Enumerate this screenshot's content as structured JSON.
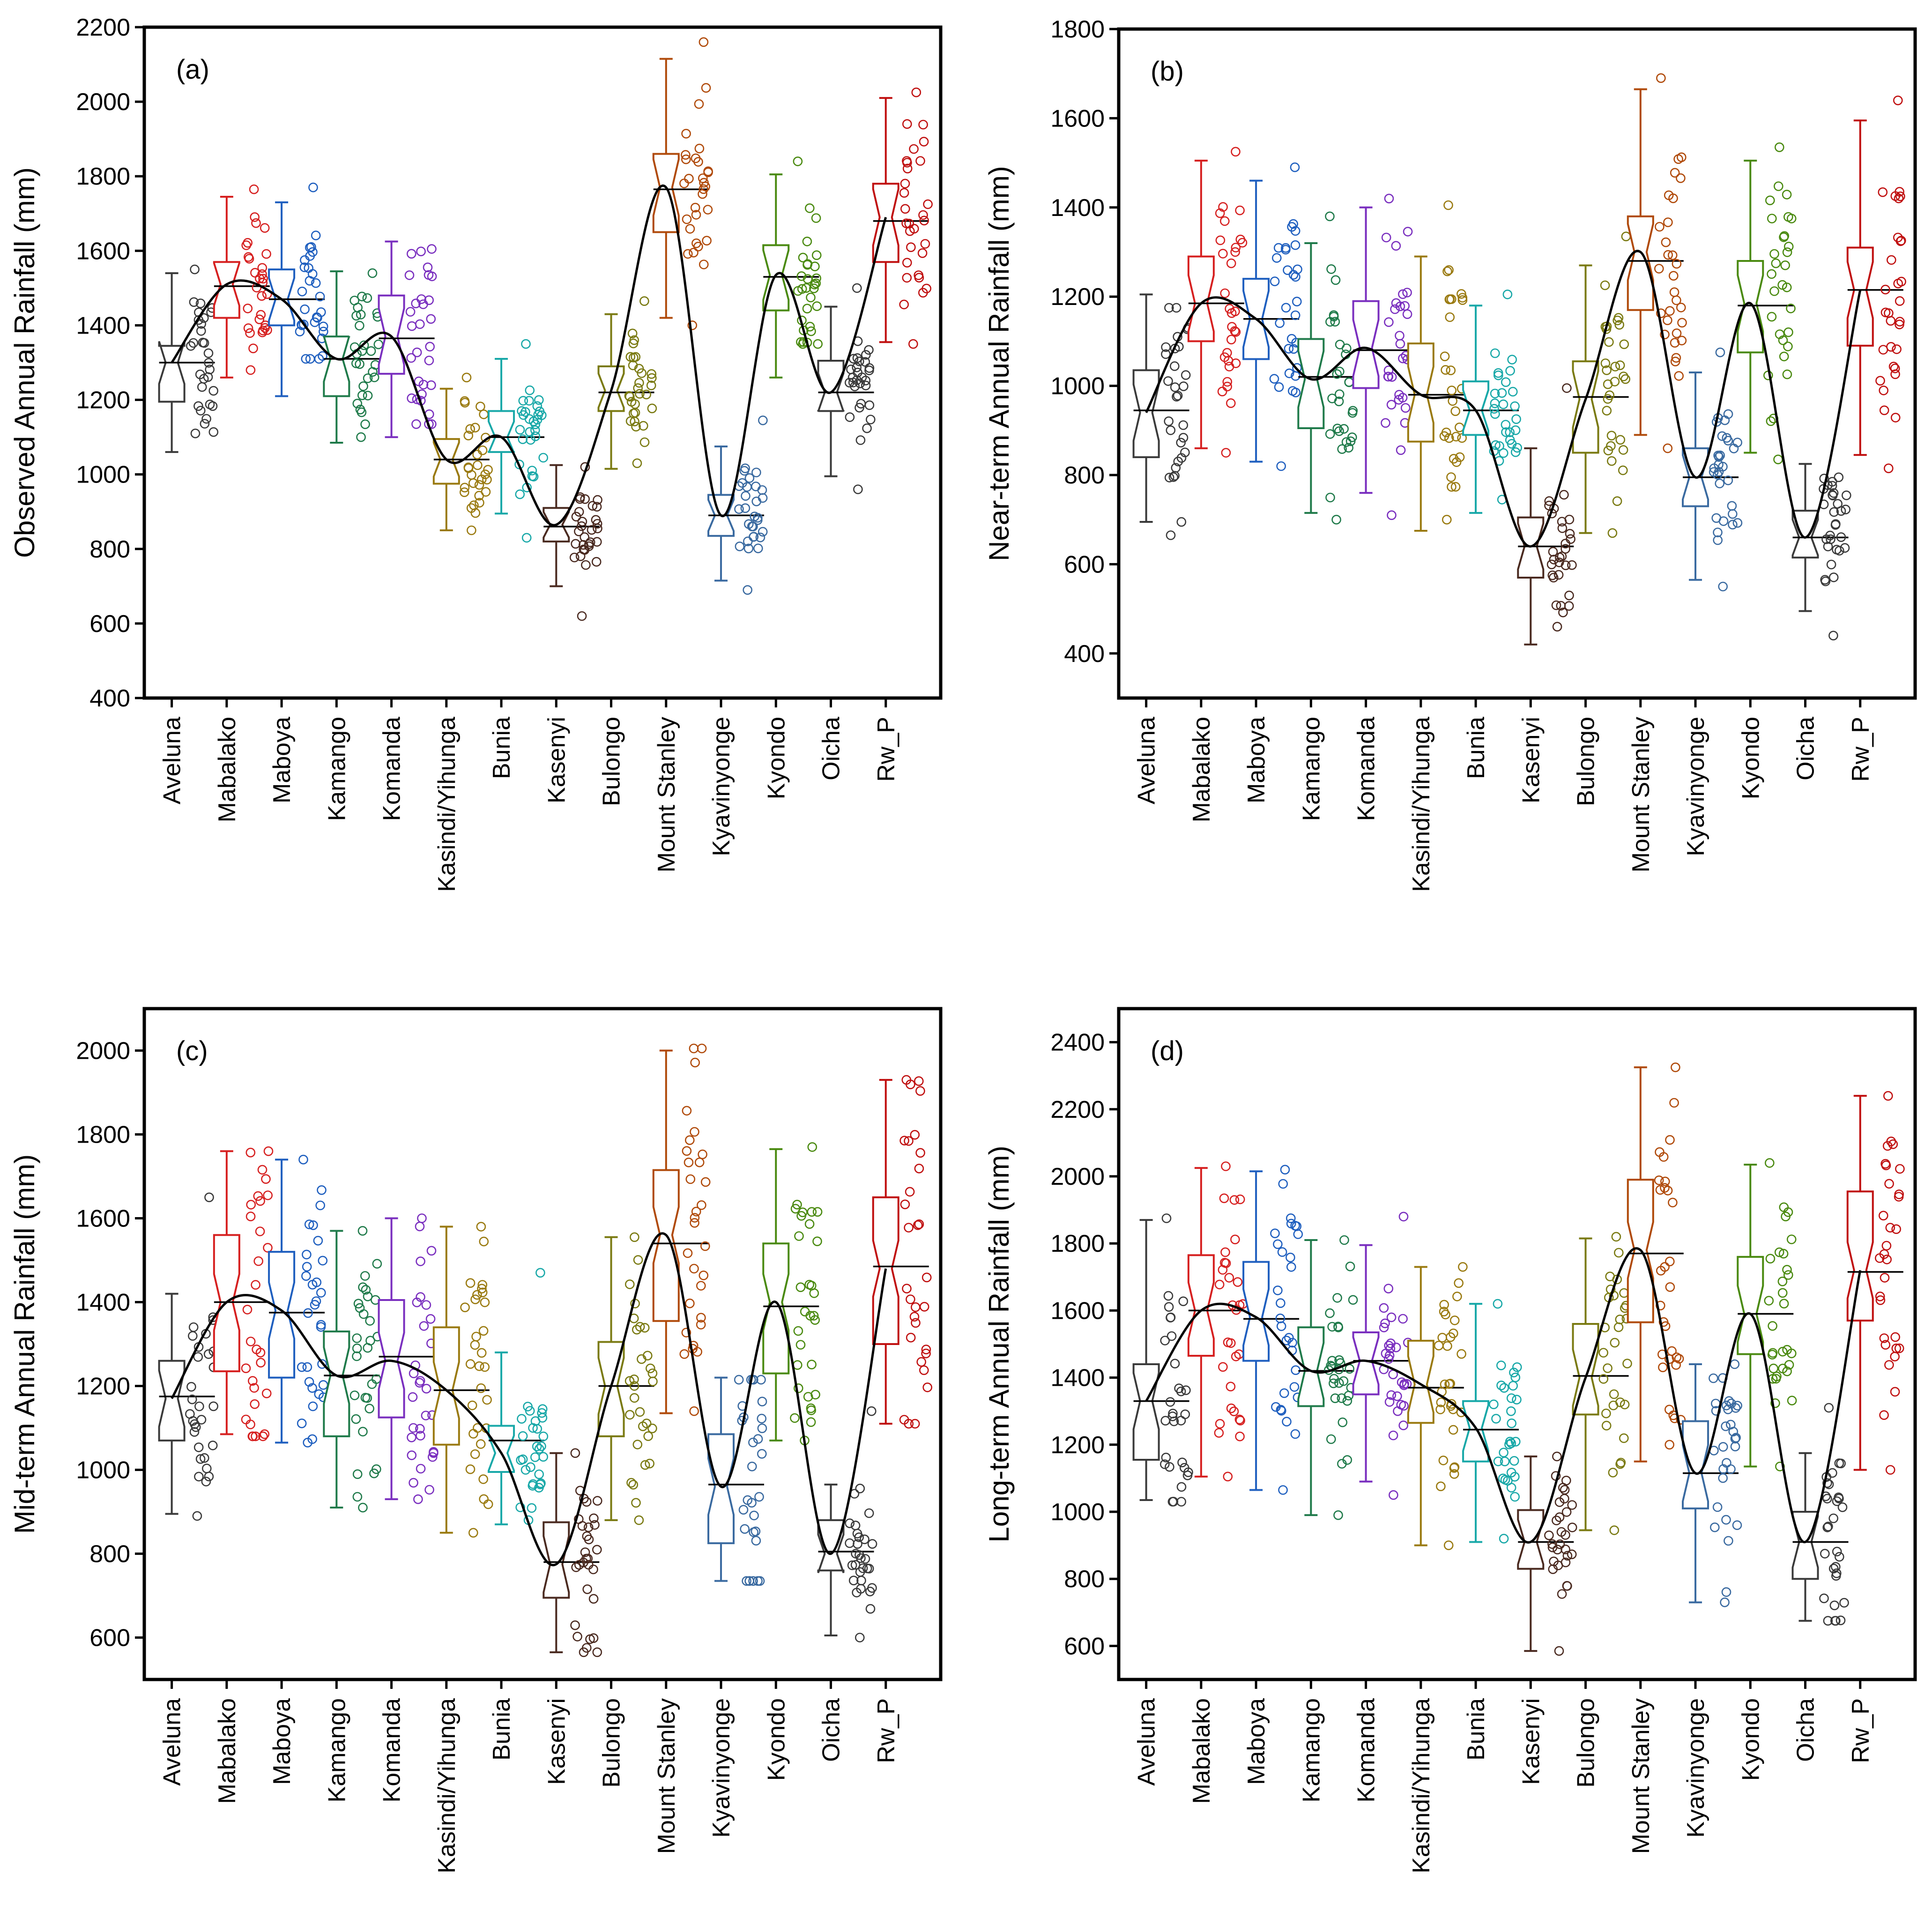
{
  "figure": {
    "categories": [
      "Aveluna",
      "Mabalako",
      "Maboya",
      "Kamango",
      "Komanda",
      "Kasindi/Yihunga",
      "Bunia",
      "Kasenyi",
      "Bulongo",
      "Mount Stanley",
      "Kyavinyonge",
      "Kyondo",
      "Oicha",
      "Rw_P"
    ],
    "colors": [
      "#3a3a3a",
      "#d62020",
      "#1f5fbf",
      "#1f7a4a",
      "#7a2fbf",
      "#9a7a10",
      "#18a8a8",
      "#4a2a20",
      "#7a7a12",
      "#b04a0a",
      "#3a6aa0",
      "#4a8a10",
      "#3a3a3a",
      "#c01010"
    ]
  },
  "chart_data": [
    {
      "type": "box",
      "panel": "(a)",
      "ylabel": "Observed Annual Rainfall (mm)",
      "ylim": [
        400,
        2200
      ],
      "yticks": [
        400,
        600,
        800,
        1000,
        1200,
        1400,
        1600,
        1800,
        2000,
        2200
      ],
      "tick_labels": [
        "400",
        "600",
        "800",
        "1000",
        "1200",
        "1400",
        "1600",
        "1800",
        "2000",
        "2200"
      ],
      "cat_labels": [
        "Aveluna",
        "Mabalako",
        "Maboya",
        "Kamango",
        "Komanda",
        "Kasindi/Yihunga",
        "Bunia",
        "Kasenyi",
        "Bulongo",
        "Mount Stanley",
        "Kyavinyonge",
        "Kyondo",
        "Oicha",
        "Rw_P"
      ],
      "series": [
        {
          "name": "Aveluna",
          "min": 1060,
          "q1": 1195,
          "median": 1300,
          "q3": 1345,
          "max": 1540,
          "mean": 1300,
          "pmin": 1110,
          "pmax": 1550
        },
        {
          "name": "Mabalako",
          "min": 1260,
          "q1": 1420,
          "median": 1510,
          "q3": 1570,
          "max": 1745,
          "mean": 1505,
          "pmin": 1280,
          "pmax": 1765
        },
        {
          "name": "Maboya",
          "min": 1210,
          "q1": 1400,
          "median": 1470,
          "q3": 1550,
          "max": 1730,
          "mean": 1470,
          "pmin": 1310,
          "pmax": 1770
        },
        {
          "name": "Kamango",
          "min": 1085,
          "q1": 1210,
          "median": 1310,
          "q3": 1370,
          "max": 1545,
          "mean": 1310,
          "pmin": 1100,
          "pmax": 1540
        },
        {
          "name": "Komanda",
          "min": 1100,
          "q1": 1270,
          "median": 1370,
          "q3": 1480,
          "max": 1625,
          "mean": 1365,
          "pmin": 1135,
          "pmax": 1605
        },
        {
          "name": "Kasindi/Yihunga",
          "min": 850,
          "q1": 975,
          "median": 1040,
          "q3": 1095,
          "max": 1230,
          "mean": 1040,
          "pmin": 850,
          "pmax": 1260
        },
        {
          "name": "Bunia",
          "min": 895,
          "q1": 1060,
          "median": 1100,
          "q3": 1170,
          "max": 1310,
          "mean": 1100,
          "pmin": 830,
          "pmax": 1350
        },
        {
          "name": "Kasenyi",
          "min": 700,
          "q1": 820,
          "median": 865,
          "q3": 910,
          "max": 1025,
          "mean": 860,
          "pmin": 620,
          "pmax": 1020
        },
        {
          "name": "Bulongo",
          "min": 1015,
          "q1": 1170,
          "median": 1225,
          "q3": 1290,
          "max": 1430,
          "mean": 1220,
          "pmin": 1030,
          "pmax": 1465
        },
        {
          "name": "Mount Stanley",
          "min": 1420,
          "q1": 1650,
          "median": 1770,
          "q3": 1860,
          "max": 2115,
          "mean": 1765,
          "pmin": 1400,
          "pmax": 2160
        },
        {
          "name": "Kyavinyonge",
          "min": 715,
          "q1": 835,
          "median": 890,
          "q3": 945,
          "max": 1075,
          "mean": 890,
          "pmin": 690,
          "pmax": 1145
        },
        {
          "name": "Kyondo",
          "min": 1260,
          "q1": 1440,
          "median": 1535,
          "q3": 1615,
          "max": 1805,
          "mean": 1530,
          "pmin": 1350,
          "pmax": 1840
        },
        {
          "name": "Oicha",
          "min": 995,
          "q1": 1170,
          "median": 1220,
          "q3": 1305,
          "max": 1450,
          "mean": 1220,
          "pmin": 960,
          "pmax": 1500
        },
        {
          "name": "Rw_P",
          "min": 1355,
          "q1": 1570,
          "median": 1690,
          "q3": 1780,
          "max": 2010,
          "mean": 1680,
          "pmin": 1350,
          "pmax": 2025
        }
      ]
    },
    {
      "type": "box",
      "panel": "(b)",
      "ylabel": "Near-term Annual Rainfall (mm)",
      "ylim": [
        300,
        1800
      ],
      "yticks": [
        400,
        600,
        800,
        1000,
        1200,
        1400,
        1600,
        1800
      ],
      "tick_labels": [
        "400",
        "600",
        "800",
        "1000",
        "1200",
        "1400",
        "1600",
        "1800"
      ],
      "cat_labels": [
        "Aveluna",
        "Mabalako",
        "Maboya",
        "Kamango",
        "Komanda",
        "Kasindi/Yihunga",
        "Bunia",
        "Kasenyi",
        "Bulongo",
        "Mount Stanley",
        "Kyavinyonge",
        "Kyondo",
        "Oicha",
        "Rw_P"
      ],
      "series": [
        {
          "name": "Aveluna",
          "min": 695,
          "q1": 840,
          "median": 940,
          "q3": 1035,
          "max": 1205,
          "mean": 945,
          "pmin": 665,
          "pmax": 1175
        },
        {
          "name": "Mabalako",
          "min": 860,
          "q1": 1100,
          "median": 1185,
          "q3": 1290,
          "max": 1505,
          "mean": 1185,
          "pmin": 850,
          "pmax": 1525
        },
        {
          "name": "Maboya",
          "min": 830,
          "q1": 1060,
          "median": 1150,
          "q3": 1240,
          "max": 1460,
          "mean": 1150,
          "pmin": 820,
          "pmax": 1490
        },
        {
          "name": "Kamango",
          "min": 715,
          "q1": 905,
          "median": 1015,
          "q3": 1105,
          "max": 1320,
          "mean": 1020,
          "pmin": 700,
          "pmax": 1380
        },
        {
          "name": "Komanda",
          "min": 760,
          "q1": 995,
          "median": 1085,
          "q3": 1190,
          "max": 1400,
          "mean": 1080,
          "pmin": 710,
          "pmax": 1420
        },
        {
          "name": "Kasindi/Yihunga",
          "min": 675,
          "q1": 875,
          "median": 980,
          "q3": 1095,
          "max": 1290,
          "mean": 980,
          "pmin": 700,
          "pmax": 1405
        },
        {
          "name": "Bunia",
          "min": 715,
          "q1": 890,
          "median": 945,
          "q3": 1010,
          "max": 1180,
          "mean": 945,
          "pmin": 745,
          "pmax": 1205
        },
        {
          "name": "Kasenyi",
          "min": 420,
          "q1": 570,
          "median": 640,
          "q3": 705,
          "max": 860,
          "mean": 640,
          "pmin": 460,
          "pmax": 995
        },
        {
          "name": "Bulongo",
          "min": 670,
          "q1": 850,
          "median": 970,
          "q3": 1055,
          "max": 1270,
          "mean": 975,
          "pmin": 670,
          "pmax": 1335
        },
        {
          "name": "Mount Stanley",
          "min": 890,
          "q1": 1170,
          "median": 1300,
          "q3": 1380,
          "max": 1665,
          "mean": 1280,
          "pmin": 860,
          "pmax": 1690
        },
        {
          "name": "Kyavinyonge",
          "min": 565,
          "q1": 730,
          "median": 795,
          "q3": 860,
          "max": 1030,
          "mean": 795,
          "pmin": 550,
          "pmax": 1075
        },
        {
          "name": "Kyondo",
          "min": 850,
          "q1": 1075,
          "median": 1185,
          "q3": 1280,
          "max": 1505,
          "mean": 1180,
          "pmin": 835,
          "pmax": 1535
        },
        {
          "name": "Oicha",
          "min": 495,
          "q1": 615,
          "median": 660,
          "q3": 720,
          "max": 825,
          "mean": 660,
          "pmin": 440,
          "pmax": 795
        },
        {
          "name": "Rw_P",
          "min": 845,
          "q1": 1090,
          "median": 1215,
          "q3": 1310,
          "max": 1595,
          "mean": 1215,
          "pmin": 815,
          "pmax": 1640
        }
      ]
    },
    {
      "type": "box",
      "panel": "(c)",
      "ylabel": "Mid-term Annual Rainfall (mm)",
      "ylim": [
        500,
        2100
      ],
      "yticks": [
        600,
        800,
        1000,
        1200,
        1400,
        1600,
        1800,
        2000
      ],
      "tick_labels": [
        "600",
        "800",
        "1000",
        "1200",
        "1400",
        "1600",
        "1800",
        "2000"
      ],
      "cat_labels": [
        "Aveluna",
        "Mabalako",
        "Maboya",
        "Kamango",
        "Komanda",
        "Kasindi/Yihunga",
        "Bunia",
        "Kasenyi",
        "Bulongo",
        "Mount Stanley",
        "Kyavinyonge",
        "Kyondo",
        "Oicha",
        "Rw_P"
      ],
      "series": [
        {
          "name": "Aveluna",
          "min": 895,
          "q1": 1070,
          "median": 1170,
          "q3": 1260,
          "max": 1420,
          "mean": 1175,
          "pmin": 890,
          "pmax": 1650
        },
        {
          "name": "Mabalako",
          "min": 1085,
          "q1": 1235,
          "median": 1400,
          "q3": 1560,
          "max": 1760,
          "mean": 1400,
          "pmin": 1080,
          "pmax": 1760
        },
        {
          "name": "Maboya",
          "min": 1065,
          "q1": 1220,
          "median": 1380,
          "q3": 1520,
          "max": 1740,
          "mean": 1375,
          "pmin": 1065,
          "pmax": 1740
        },
        {
          "name": "Kamango",
          "min": 910,
          "q1": 1080,
          "median": 1225,
          "q3": 1330,
          "max": 1570,
          "mean": 1225,
          "pmin": 910,
          "pmax": 1570
        },
        {
          "name": "Komanda",
          "min": 930,
          "q1": 1125,
          "median": 1260,
          "q3": 1405,
          "max": 1600,
          "mean": 1270,
          "pmin": 930,
          "pmax": 1600
        },
        {
          "name": "Kasindi/Yihunga",
          "min": 850,
          "q1": 1060,
          "median": 1190,
          "q3": 1340,
          "max": 1580,
          "mean": 1190,
          "pmin": 850,
          "pmax": 1580
        },
        {
          "name": "Bunia",
          "min": 870,
          "q1": 995,
          "median": 1040,
          "q3": 1105,
          "max": 1280,
          "mean": 1070,
          "pmin": 880,
          "pmax": 1470
        },
        {
          "name": "Kasenyi",
          "min": 565,
          "q1": 695,
          "median": 775,
          "q3": 875,
          "max": 1040,
          "mean": 780,
          "pmin": 565,
          "pmax": 1040
        },
        {
          "name": "Bulongo",
          "min": 880,
          "q1": 1080,
          "median": 1200,
          "q3": 1305,
          "max": 1555,
          "mean": 1200,
          "pmin": 880,
          "pmax": 1555
        },
        {
          "name": "Mount Stanley",
          "min": 1135,
          "q1": 1355,
          "median": 1560,
          "q3": 1715,
          "max": 2000,
          "mean": 1540,
          "pmin": 1140,
          "pmax": 2005
        },
        {
          "name": "Kyavinyonge",
          "min": 735,
          "q1": 825,
          "median": 960,
          "q3": 1085,
          "max": 1220,
          "mean": 965,
          "pmin": 735,
          "pmax": 1215
        },
        {
          "name": "Kyondo",
          "min": 1070,
          "q1": 1230,
          "median": 1400,
          "q3": 1540,
          "max": 1765,
          "mean": 1390,
          "pmin": 1070,
          "pmax": 1770
        },
        {
          "name": "Oicha",
          "min": 605,
          "q1": 760,
          "median": 800,
          "q3": 880,
          "max": 965,
          "mean": 805,
          "pmin": 600,
          "pmax": 1140
        },
        {
          "name": "Rw_P",
          "min": 1110,
          "q1": 1300,
          "median": 1480,
          "q3": 1650,
          "max": 1930,
          "mean": 1485,
          "pmin": 1110,
          "pmax": 1930
        }
      ]
    },
    {
      "type": "box",
      "panel": "(d)",
      "ylabel": "Long-term Annual Rainfall (mm)",
      "ylim": [
        500,
        2500
      ],
      "yticks": [
        600,
        800,
        1000,
        1200,
        1400,
        1600,
        1800,
        2000,
        2200,
        2400
      ],
      "tick_labels": [
        "600",
        "800",
        "1000",
        "1200",
        "1400",
        "1600",
        "1800",
        "2000",
        "2200",
        "2400"
      ],
      "cat_labels": [
        "Aveluna",
        "Mabalako",
        "Maboya",
        "Kamango",
        "Komanda",
        "Kasindi/Yihunga",
        "Bunia",
        "Kasenyi",
        "Bulongo",
        "Mount Stanley",
        "Kyavinyonge",
        "Kyondo",
        "Oicha",
        "Rw_P"
      ],
      "series": [
        {
          "name": "Aveluna",
          "min": 1035,
          "q1": 1155,
          "median": 1330,
          "q3": 1440,
          "max": 1870,
          "mean": 1330,
          "pmin": 1030,
          "pmax": 1875
        },
        {
          "name": "Mabalako",
          "min": 1105,
          "q1": 1465,
          "median": 1600,
          "q3": 1765,
          "max": 2025,
          "mean": 1600,
          "pmin": 1105,
          "pmax": 2030
        },
        {
          "name": "Maboya",
          "min": 1065,
          "q1": 1450,
          "median": 1580,
          "q3": 1745,
          "max": 2015,
          "mean": 1575,
          "pmin": 1065,
          "pmax": 2020
        },
        {
          "name": "Kamango",
          "min": 990,
          "q1": 1315,
          "median": 1420,
          "q3": 1550,
          "max": 1810,
          "mean": 1420,
          "pmin": 990,
          "pmax": 1810
        },
        {
          "name": "Komanda",
          "min": 1090,
          "q1": 1350,
          "median": 1450,
          "q3": 1535,
          "max": 1795,
          "mean": 1450,
          "pmin": 1050,
          "pmax": 1880
        },
        {
          "name": "Kasindi/Yihunga",
          "min": 900,
          "q1": 1265,
          "median": 1380,
          "q3": 1510,
          "max": 1730,
          "mean": 1370,
          "pmin": 900,
          "pmax": 1730
        },
        {
          "name": "Bunia",
          "min": 910,
          "q1": 1150,
          "median": 1250,
          "q3": 1330,
          "max": 1620,
          "mean": 1245,
          "pmin": 920,
          "pmax": 1620
        },
        {
          "name": "Kasenyi",
          "min": 585,
          "q1": 830,
          "median": 910,
          "q3": 1005,
          "max": 1165,
          "mean": 910,
          "pmin": 585,
          "pmax": 1165
        },
        {
          "name": "Bulongo",
          "min": 945,
          "q1": 1290,
          "median": 1400,
          "q3": 1560,
          "max": 1815,
          "mean": 1405,
          "pmin": 945,
          "pmax": 1820
        },
        {
          "name": "Mount Stanley",
          "min": 1150,
          "q1": 1565,
          "median": 1780,
          "q3": 1990,
          "max": 2325,
          "mean": 1770,
          "pmin": 1200,
          "pmax": 2325
        },
        {
          "name": "Kyavinyonge",
          "min": 730,
          "q1": 1010,
          "median": 1115,
          "q3": 1270,
          "max": 1440,
          "mean": 1115,
          "pmin": 730,
          "pmax": 1440
        },
        {
          "name": "Kyondo",
          "min": 1135,
          "q1": 1470,
          "median": 1590,
          "q3": 1760,
          "max": 2035,
          "mean": 1590,
          "pmin": 1135,
          "pmax": 2040
        },
        {
          "name": "Oicha",
          "min": 675,
          "q1": 800,
          "median": 910,
          "q3": 1000,
          "max": 1175,
          "mean": 910,
          "pmin": 675,
          "pmax": 1310
        },
        {
          "name": "Rw_P",
          "min": 1125,
          "q1": 1570,
          "median": 1720,
          "q3": 1955,
          "max": 2240,
          "mean": 1715,
          "pmin": 1125,
          "pmax": 2240
        }
      ]
    }
  ]
}
